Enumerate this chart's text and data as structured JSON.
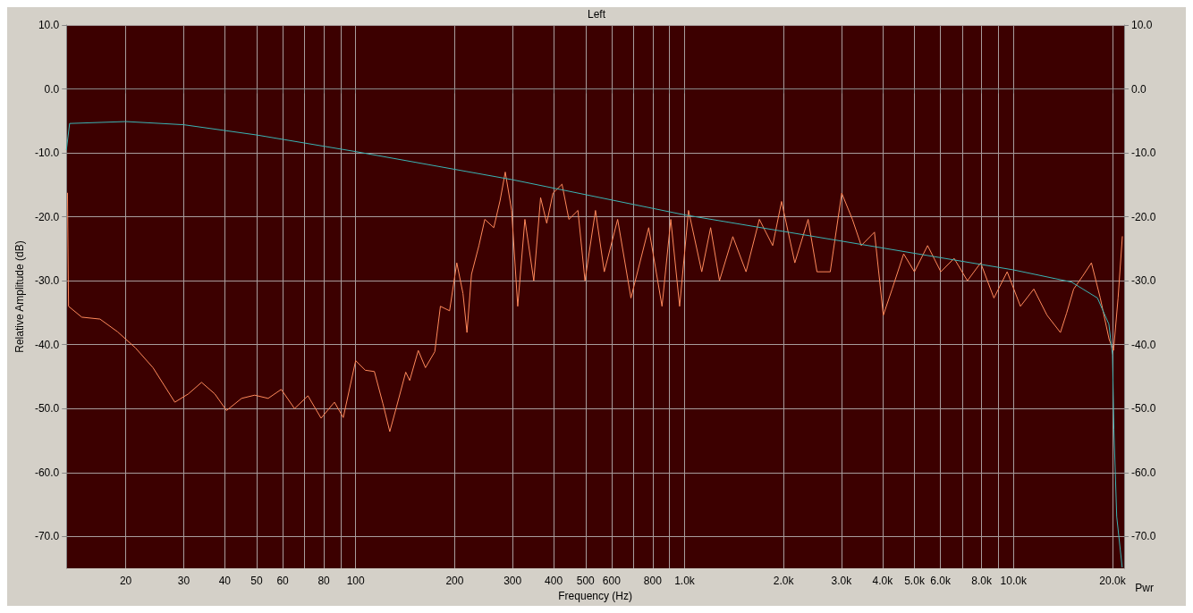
{
  "chart_data": {
    "type": "line",
    "title": "Left",
    "xlabel": "Frequency (Hz)",
    "ylabel": "Relative Amplitude (dB)",
    "log": "x",
    "grid": true,
    "marker": "none",
    "line_style": "solid",
    "annotations": [
      "Pwr"
    ],
    "xlim": [
      13.2,
      21700
    ],
    "ylim": [
      -75,
      10
    ],
    "y2lim": [
      -75,
      10
    ],
    "xticks": [
      20,
      30,
      40,
      50,
      60,
      {
        "value": 70,
        "label": null
      },
      80,
      {
        "value": 90,
        "label": null
      },
      100,
      200,
      300,
      400,
      500,
      600,
      {
        "value": 700,
        "label": null
      },
      800,
      {
        "value": 900,
        "label": null
      },
      {
        "value": 1000,
        "label": "1.0k"
      },
      {
        "value": 2000,
        "label": "2.0k"
      },
      {
        "value": 3000,
        "label": "3.0k"
      },
      {
        "value": 4000,
        "label": "4.0k"
      },
      {
        "value": 5000,
        "label": "5.0k"
      },
      {
        "value": 6000,
        "label": "6.0k"
      },
      {
        "value": 7000,
        "label": null
      },
      {
        "value": 8000,
        "label": "8.0k"
      },
      {
        "value": 9000,
        "label": null
      },
      {
        "value": 10000,
        "label": "10.0k"
      },
      {
        "value": 20000,
        "label": "20.0k"
      }
    ],
    "yticks": [
      {
        "value": 10,
        "label": "10.0"
      },
      {
        "value": 0,
        "label": "0.0"
      },
      {
        "value": -10,
        "label": "-10.0"
      },
      {
        "value": -20,
        "label": "-20.0"
      },
      {
        "value": -30,
        "label": "-30.0"
      },
      {
        "value": -40,
        "label": "-40.0"
      },
      {
        "value": -50,
        "label": "-50.0"
      },
      {
        "value": -60,
        "label": "-60.0"
      },
      {
        "value": -70,
        "label": "-70.0"
      }
    ],
    "y2ticks": [
      {
        "value": 10,
        "label": "10.0"
      },
      {
        "value": 0,
        "label": "0.0"
      },
      {
        "value": -10,
        "label": "-10.0"
      },
      {
        "value": -20,
        "label": "-20.0"
      },
      {
        "value": -30,
        "label": "-30.0"
      },
      {
        "value": -40,
        "label": "-40.0"
      },
      {
        "value": -50,
        "label": "-50.0"
      },
      {
        "value": -60,
        "label": "-60.0"
      },
      {
        "value": -70,
        "label": "-70.0"
      }
    ],
    "series": [
      {
        "color": "#ff8a5c",
        "x": [
          13.3,
          13.4,
          14.7,
          16.7,
          18.9,
          21.4,
          24.2,
          28.2,
          31,
          34,
          37.3,
          40.5,
          45,
          49.3,
          54.2,
          59.4,
          65.2,
          71.6,
          78.5,
          86.2,
          91.7,
          100,
          107,
          114,
          121,
          127,
          133,
          142,
          146,
          155,
          163,
          174,
          181,
          193,
          203,
          212,
          218,
          225,
          237,
          247,
          263,
          275,
          285,
          298,
          311,
          327,
          348,
          365,
          381,
          398,
          424,
          445,
          474,
          498,
          536,
          570,
          626,
          687,
          778,
          854,
          908,
          966,
          1028,
          1128,
          1200,
          1277,
          1402,
          1538,
          1688,
          1853,
          1972,
          2164,
          2375,
          2527,
          2773,
          3005,
          3238,
          3445,
          3779,
          4020,
          4277,
          4636,
          4998,
          5482,
          6014,
          6600,
          7244,
          7948,
          8720,
          9569,
          10500,
          11530,
          12650,
          13890,
          14500,
          15240,
          16220,
          17260,
          18360,
          19540,
          20150,
          20800,
          21430
        ],
        "values": [
          -16.3,
          -34,
          -35.7,
          -36,
          -38,
          -40.5,
          -43.6,
          -49,
          -47.7,
          -45.9,
          -47.7,
          -50.3,
          -48.4,
          -47.9,
          -48.4,
          -47,
          -50,
          -48,
          -51.5,
          -49,
          -51.4,
          -42.5,
          -44,
          -44.2,
          -49.2,
          -53.6,
          -49.8,
          -44.3,
          -45.6,
          -40.9,
          -43.6,
          -41.1,
          -34,
          -34.7,
          -27.2,
          -32,
          -38.1,
          -29,
          -24.5,
          -20.4,
          -21.7,
          -17.4,
          -13,
          -19,
          -34,
          -20.4,
          -30,
          -17,
          -21,
          -16.3,
          -14.9,
          -20.4,
          -19,
          -30,
          -19,
          -28.6,
          -20.4,
          -32.7,
          -21.7,
          -34,
          -20.4,
          -34,
          -19,
          -28.6,
          -21.7,
          -30,
          -23.1,
          -28.6,
          -20.4,
          -24.5,
          -17.6,
          -27.2,
          -20.4,
          -28.6,
          -28.6,
          -16.3,
          -20.4,
          -24.5,
          -22.4,
          -35.4,
          -31.3,
          -25.8,
          -28.6,
          -24.5,
          -28.6,
          -26.5,
          -30,
          -27.2,
          -32.7,
          -28.6,
          -34,
          -31.3,
          -35.4,
          -38.1,
          -35.1,
          -31.3,
          -29.3,
          -27.2,
          -32.7,
          -39.2,
          -40.9,
          -32.7,
          -23.1
        ]
      },
      {
        "color": "#3ab4b4",
        "x": [
          13.2,
          13.5,
          20,
          30,
          50,
          100,
          300,
          1000,
          3000,
          10000,
          15000,
          18000,
          19500,
          20000,
          20200,
          20600,
          21400
        ],
        "values": [
          -9.5,
          -5.4,
          -5.1,
          -5.6,
          -7.2,
          -9.8,
          -14.2,
          -19.7,
          -23.8,
          -28.3,
          -30.2,
          -32.7,
          -36.8,
          -41.6,
          -53.2,
          -66.9,
          -74.8
        ]
      }
    ]
  }
}
